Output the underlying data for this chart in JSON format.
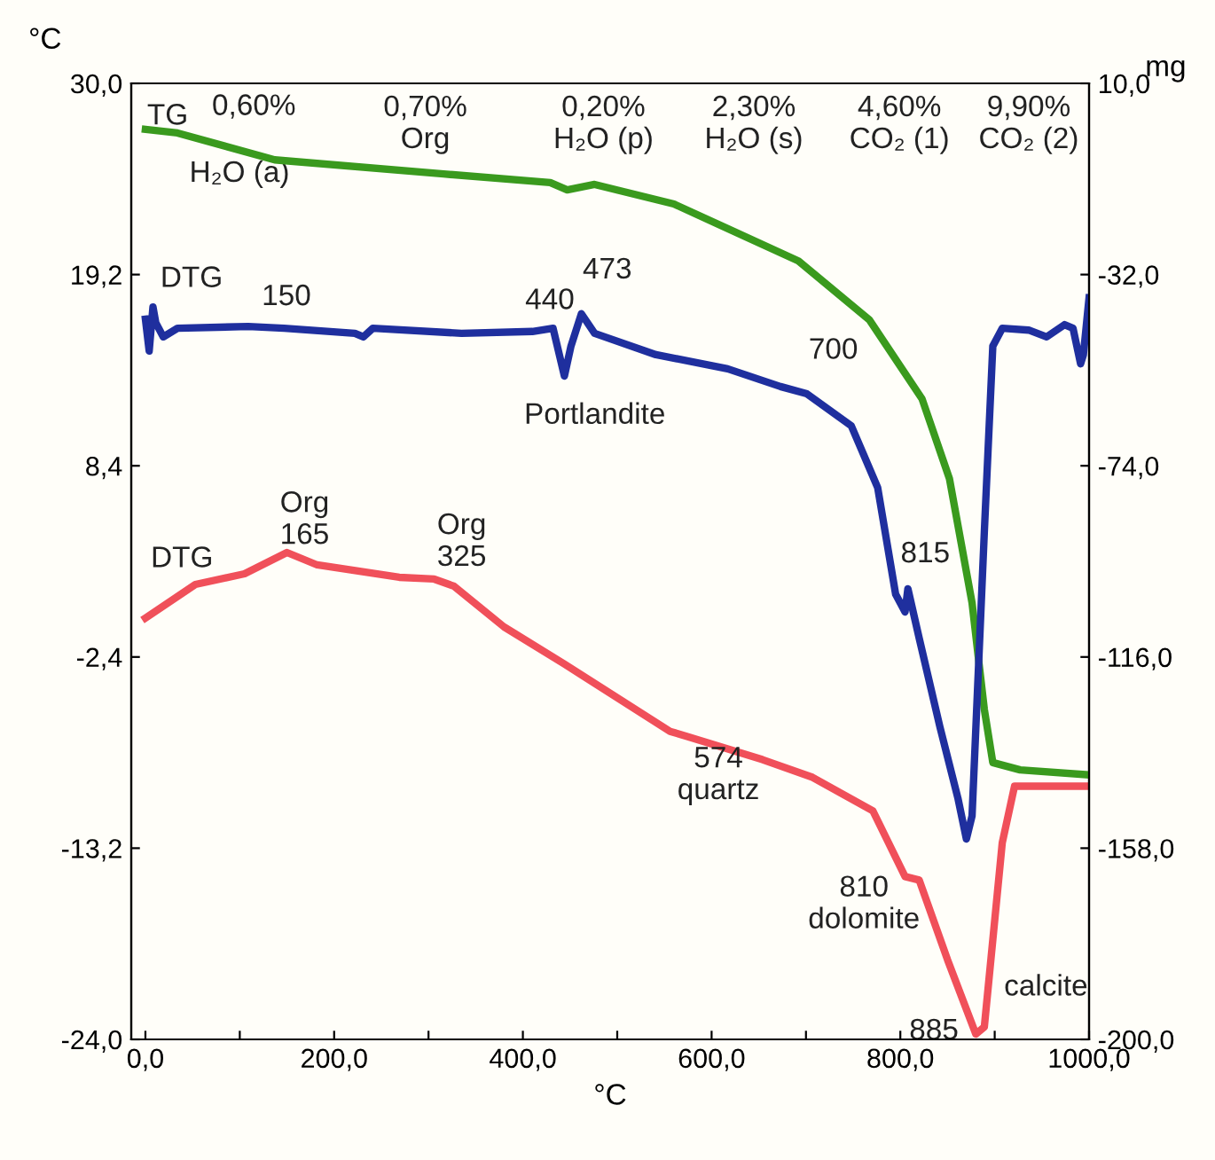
{
  "chart_data": {
    "type": "line",
    "xlabel": "°C",
    "ylabel": "°C",
    "y2label": "mg",
    "xlim": [
      -15,
      1000
    ],
    "xticks": [
      {
        "value": 0,
        "label": "0,0"
      },
      {
        "value": 100,
        "label": null
      },
      {
        "value": 200,
        "label": "200,0"
      },
      {
        "value": 300,
        "label": null
      },
      {
        "value": 400,
        "label": "400,0"
      },
      {
        "value": 500,
        "label": null
      },
      {
        "value": 600,
        "label": "600,0"
      },
      {
        "value": 700,
        "label": null
      },
      {
        "value": 800,
        "label": "800,0"
      },
      {
        "value": 900,
        "label": null
      },
      {
        "value": 1000,
        "label": "1000,0"
      }
    ],
    "ylim": [
      -24,
      30
    ],
    "yticks": [
      {
        "value": 30,
        "label": "30,0"
      },
      {
        "value": 19.2,
        "label": "19,2"
      },
      {
        "value": 8.4,
        "label": "8,4"
      },
      {
        "value": -2.4,
        "label": "-2,4"
      },
      {
        "value": -13.2,
        "label": "-13,2"
      },
      {
        "value": -24,
        "label": "-24,0"
      }
    ],
    "y2lim": [
      -200,
      10
    ],
    "y2ticks": [
      {
        "value": 10,
        "label": "10,0"
      },
      {
        "value": -32,
        "label": "-32,0"
      },
      {
        "value": -74,
        "label": "-74,0"
      },
      {
        "value": -116,
        "label": "-116,0"
      },
      {
        "value": -158,
        "label": "-158,0"
      },
      {
        "value": -200,
        "label": "-200,0"
      }
    ],
    "grid": false,
    "legend": false,
    "line_style": "solid",
    "marker": "none",
    "series": [
      {
        "color": "#3a9a1e",
        "axis": "y2",
        "x": [
          0,
          34,
          137,
          316,
          429,
          447,
          476,
          560,
          692,
          767,
          823,
          852,
          876,
          889,
          898,
          927,
          1000
        ],
        "values": [
          -0.1,
          -0.9,
          -6.8,
          -9.9,
          -11.8,
          -13.4,
          -12.2,
          -16.5,
          -29.0,
          -41.9,
          -59.3,
          -76.8,
          -104.1,
          -127.5,
          -139.2,
          -140.8,
          -141.9
        ]
      },
      {
        "color": "#1f2f9e",
        "axis": "y2",
        "x": [
          0,
          4,
          8,
          11,
          19,
          34,
          109,
          147,
          222,
          231,
          241,
          335,
          410,
          432,
          444,
          451,
          462,
          476,
          541,
          617,
          673,
          701,
          748,
          776,
          795,
          805,
          808,
          820,
          842,
          861,
          870,
          876,
          889,
          898,
          908,
          936,
          955,
          974,
          983,
          991,
          994,
          1000
        ],
        "values": [
          -41.8,
          -48.8,
          -39.1,
          -42.6,
          -45.7,
          -43.8,
          -43.4,
          -43.8,
          -44.9,
          -45.7,
          -43.8,
          -44.9,
          -44.5,
          -43.8,
          -54.3,
          -47.7,
          -40.6,
          -44.9,
          -49.6,
          -52.7,
          -56.6,
          -58.2,
          -65.2,
          -78.8,
          -102.2,
          -106.1,
          -101.0,
          -111.9,
          -131.4,
          -147.0,
          -156.0,
          -150.9,
          -88.6,
          -47.7,
          -43.8,
          -44.2,
          -45.7,
          -43.0,
          -43.8,
          -51.6,
          -49.6,
          -37.1
        ]
      },
      {
        "color": "#f0505a",
        "axis": "y",
        "x": [
          0,
          53,
          105,
          150,
          182,
          269,
          306,
          327,
          380,
          444,
          556,
          575,
          654,
          707,
          771,
          805,
          820,
          850,
          880,
          889,
          908,
          921,
          1000
        ],
        "values": [
          -0.2,
          1.7,
          2.3,
          3.5,
          2.8,
          2.1,
          2.0,
          1.6,
          -0.7,
          -2.8,
          -6.6,
          -6.9,
          -8.2,
          -9.2,
          -11.1,
          -14.8,
          -15.0,
          -19.5,
          -23.7,
          -23.3,
          -12.9,
          -9.7,
          -9.7
        ]
      }
    ],
    "annotations": [
      "TG",
      "0,60%",
      "H₂O (a)",
      "0,70%\nOrg",
      "0,20%\nH₂O (p)",
      "2,30%\nH₂O (s)",
      "4,60%\nCO₂ (1)",
      "9,90%\nCO₂ (2)",
      "DTG",
      "150",
      "440",
      "473",
      "700",
      "Portlandite",
      "815",
      "DTG",
      "Org\n165",
      "Org\n325",
      "574\nquartz",
      "810\ndolomite",
      "885",
      "calcite"
    ]
  }
}
